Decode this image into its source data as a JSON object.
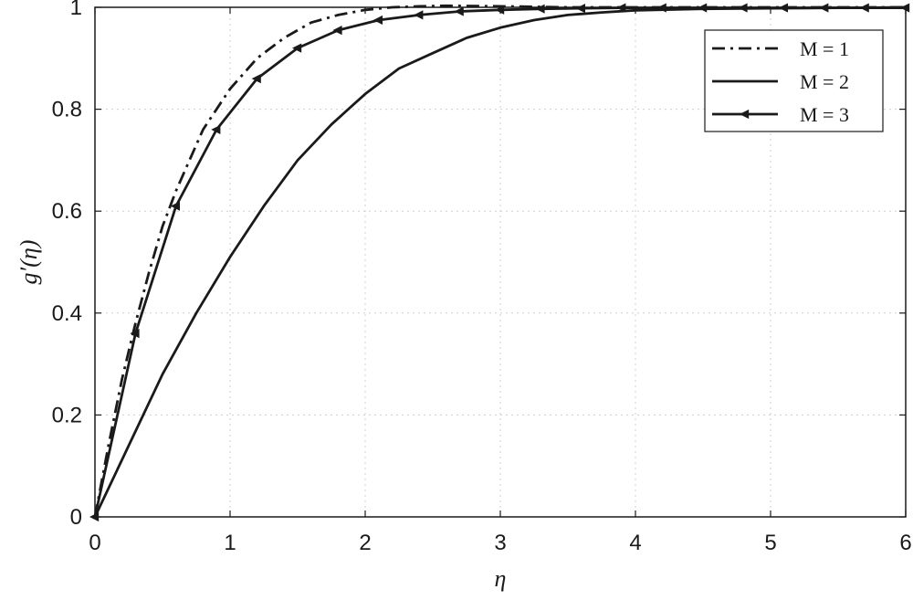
{
  "chart_data": {
    "type": "line",
    "xlabel": "η",
    "ylabel": "g′(η)",
    "xlim": [
      0,
      6
    ],
    "ylim": [
      0,
      1
    ],
    "xticks": [
      "0",
      "1",
      "2",
      "3",
      "4",
      "5",
      "6"
    ],
    "yticks": [
      "0",
      "0.2",
      "0.4",
      "0.6",
      "0.8",
      "1"
    ],
    "grid": true,
    "legend_position": "top-right",
    "series": [
      {
        "name": "M = 1",
        "style": "dash-dot",
        "marker": "none",
        "x": [
          0,
          0.1,
          0.2,
          0.3,
          0.4,
          0.5,
          0.6,
          0.8,
          1.0,
          1.2,
          1.4,
          1.6,
          1.8,
          2.0,
          2.2,
          2.4,
          2.6,
          3.0,
          3.5,
          4.0,
          5.0,
          6.0
        ],
        "y": [
          0,
          0.14,
          0.27,
          0.38,
          0.48,
          0.57,
          0.64,
          0.76,
          0.84,
          0.9,
          0.94,
          0.97,
          0.985,
          0.995,
          1.0,
          1.002,
          1.003,
          1.002,
          1.0,
          1.0,
          1.0,
          1.0
        ]
      },
      {
        "name": "M = 2",
        "style": "solid",
        "marker": "none",
        "x": [
          0,
          0.25,
          0.5,
          0.75,
          1.0,
          1.25,
          1.5,
          1.75,
          2.0,
          2.25,
          2.5,
          2.75,
          3.0,
          3.25,
          3.5,
          3.75,
          4.0,
          4.5,
          5.0,
          5.5,
          6.0
        ],
        "y": [
          0,
          0.14,
          0.28,
          0.4,
          0.51,
          0.61,
          0.7,
          0.77,
          0.83,
          0.88,
          0.91,
          0.94,
          0.96,
          0.975,
          0.985,
          0.99,
          0.994,
          0.997,
          0.998,
          0.999,
          1.0
        ]
      },
      {
        "name": "M = 3",
        "style": "solid",
        "marker": "triangle-left",
        "x": [
          0,
          0.3,
          0.6,
          0.9,
          1.2,
          1.5,
          1.8,
          2.1,
          2.4,
          2.7,
          3.0,
          3.3,
          3.6,
          3.9,
          4.2,
          4.5,
          4.8,
          5.1,
          5.4,
          5.7,
          6.0
        ],
        "y": [
          0,
          0.36,
          0.61,
          0.76,
          0.86,
          0.92,
          0.955,
          0.975,
          0.985,
          0.992,
          0.995,
          0.997,
          0.998,
          0.999,
          0.999,
          0.999,
          0.999,
          0.999,
          0.999,
          0.999,
          0.999
        ]
      }
    ]
  }
}
